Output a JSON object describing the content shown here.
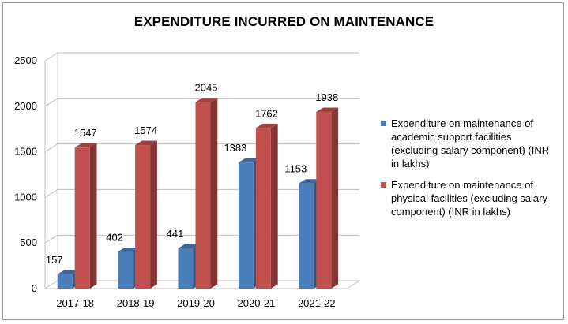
{
  "chart_data": {
    "type": "bar",
    "title": "EXPENDITURE INCURRED ON MAINTENANCE",
    "categories": [
      "2017-18",
      "2018-19",
      "2019-20",
      "2020-21",
      "2021-22"
    ],
    "ylim": [
      0,
      2500
    ],
    "yticks": [
      0,
      500,
      1000,
      1500,
      2000,
      2500
    ],
    "grid": true,
    "legend_position": "right",
    "series": [
      {
        "name": "Expenditure on maintenance of academic support facilities (excluding salary component) (INR in lakhs)",
        "color": "#4a7ebb",
        "values": [
          157,
          402,
          441,
          1383,
          1153
        ],
        "labels": [
          "157",
          "402",
          "441",
          "1383",
          "1153"
        ]
      },
      {
        "name": "Expenditure on maintenance of physical facilities (excluding salary component) (INR in lakhs)",
        "color": "#c0504d",
        "values": [
          1547,
          1574,
          2045,
          1762,
          1938
        ],
        "labels": [
          "1547",
          "1574",
          "2045",
          "1762",
          "1938"
        ]
      }
    ]
  }
}
